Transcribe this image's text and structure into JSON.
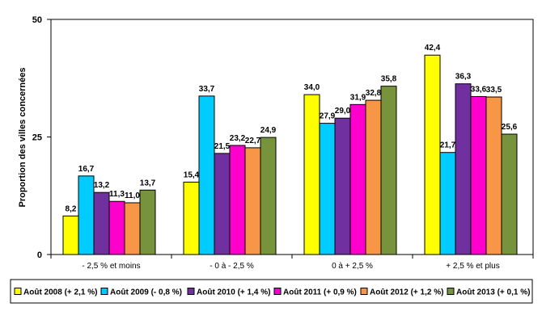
{
  "chart_data": {
    "type": "bar",
    "title": "",
    "xlabel": "",
    "ylabel": "Proportion des villes concernées",
    "ylim": [
      0,
      50
    ],
    "yticks": [
      "0",
      "25",
      "50"
    ],
    "grid": false,
    "legend_position": "bottom",
    "categories": [
      "- 2,5 % et moins",
      "- 0 à - 2,5 %",
      "0 à + 2,5 %",
      "+ 2,5 % et plus"
    ],
    "series": [
      {
        "name": "Août 2008 (+ 2,1 %)",
        "color": "#FFFF00",
        "values": [
          8.2,
          15.4,
          34.0,
          42.4
        ],
        "labels": [
          "8,2",
          "15,4",
          "34,0",
          "42,4"
        ]
      },
      {
        "name": "Août 2009 (- 0,8 %)",
        "color": "#00CCFF",
        "values": [
          16.7,
          33.7,
          27.9,
          21.7
        ],
        "labels": [
          "16,7",
          "33,7",
          "27,9",
          "21,7"
        ]
      },
      {
        "name": "Août 2010 (+ 1,4 %)",
        "color": "#7030A0",
        "values": [
          13.2,
          21.5,
          29.0,
          36.3
        ],
        "labels": [
          "13,2",
          "21,5",
          "29,0",
          "36,3"
        ]
      },
      {
        "name": "Août 2011 (+ 0,9 %)",
        "color": "#FF00CC",
        "values": [
          11.3,
          23.2,
          31.9,
          33.6
        ],
        "labels": [
          "11,3",
          "23,2",
          "31,9",
          "33,6"
        ]
      },
      {
        "name": "Août 2012 (+ 1,2 %)",
        "color": "#F79646",
        "values": [
          11.0,
          22.7,
          32.8,
          33.5
        ],
        "labels": [
          "11,0",
          "22,7",
          "32,8",
          "33,5"
        ]
      },
      {
        "name": "Août 2013 (+ 0,1 %)",
        "color": "#77933C",
        "values": [
          13.7,
          24.9,
          35.8,
          25.6
        ],
        "labels": [
          "13,7",
          "24,9",
          "35,8",
          "25,6"
        ]
      }
    ]
  }
}
